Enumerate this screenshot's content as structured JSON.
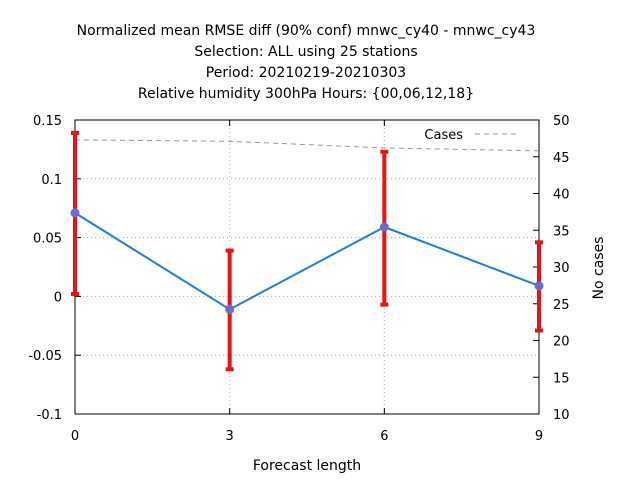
{
  "chart_data": {
    "type": "line",
    "title_lines": [
      "Normalized mean RMSE diff (90% conf) mnwc_cy40 - mnwc_cy43",
      "Selection: ALL using    25 stations",
      "Period: 20210219-20210303",
      "Relative humidity 300hPa   Hours: {00,06,12,18}"
    ],
    "xlabel": "Forecast length",
    "ylabel": "",
    "y2label": "No cases",
    "x_ticks": [
      "0",
      "3",
      "6",
      "9"
    ],
    "xlim": [
      0,
      9
    ],
    "ylim": [
      -0.1,
      0.15
    ],
    "y_ticks": [
      "-0.1",
      "-0.05",
      "0",
      "0.05",
      "0.1",
      "0.15"
    ],
    "y2lim": [
      10,
      50
    ],
    "y2_ticks": [
      "10",
      "15",
      "20",
      "25",
      "30",
      "35",
      "40",
      "45",
      "50"
    ],
    "grid": true,
    "legend_position": "top-right",
    "series": [
      {
        "x": [
          0,
          3,
          6,
          9
        ],
        "values": [
          0.071,
          -0.011,
          0.059,
          0.009
        ],
        "error_low": [
          0.002,
          -0.062,
          -0.007,
          -0.029
        ],
        "error_high": [
          0.139,
          0.039,
          0.123,
          0.046
        ],
        "color": "#1e7fd8",
        "marker_color": "#6a6ad0",
        "error_color": "#ee1111"
      },
      {
        "name": "Cases",
        "axis": "y2",
        "x": [
          0,
          3,
          6,
          9
        ],
        "values": [
          47.3,
          47.1,
          46.2,
          45.8
        ],
        "color": "#999999",
        "dashed": true
      }
    ]
  }
}
